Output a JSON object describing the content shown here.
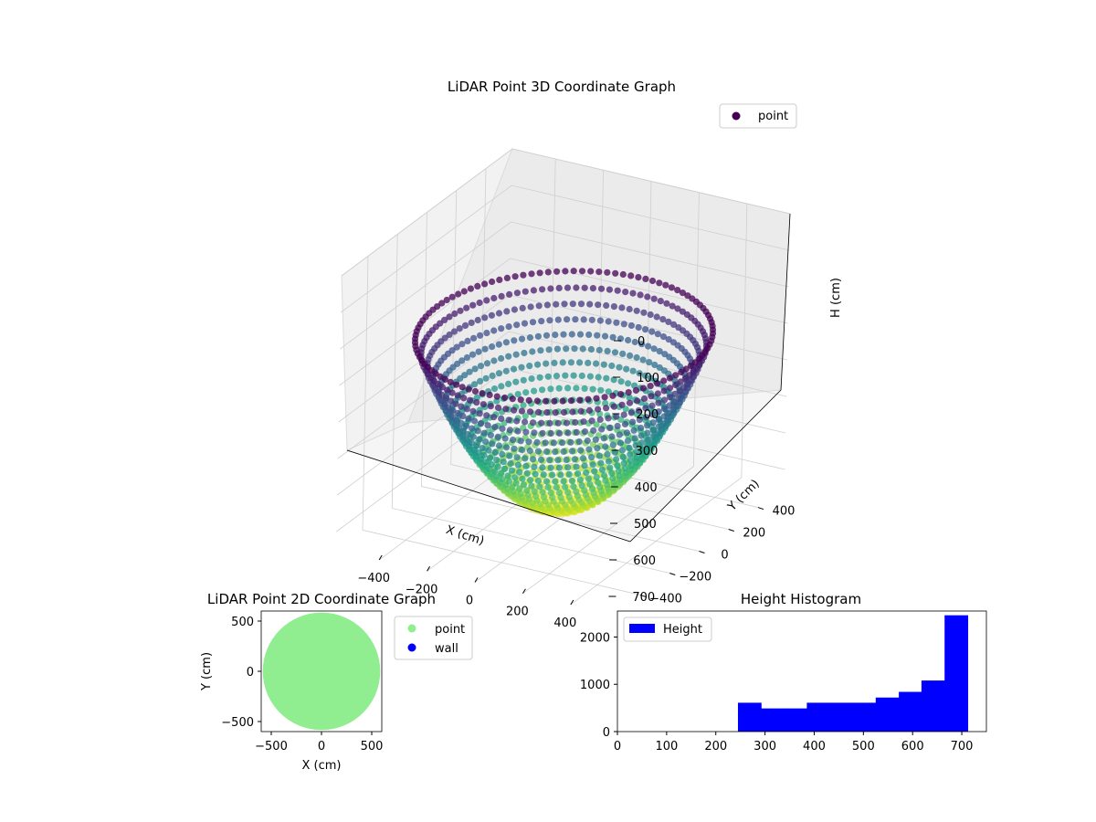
{
  "figure": {
    "background": "#ffffff"
  },
  "chart_data": [
    {
      "type": "scatter",
      "projection": "3d",
      "title": "LiDAR Point 3D Coordinate Graph",
      "xlabel": "X (cm)",
      "ylabel": "Y (cm)",
      "zlabel": "H (cm)",
      "xlim": [
        -580,
        580
      ],
      "ylim": [
        -580,
        580
      ],
      "zlim": [
        750,
        0
      ],
      "z_inverted": true,
      "xticks": [
        -400,
        -200,
        0,
        200,
        400
      ],
      "xtick_labels": [
        "−400",
        "−200",
        "0",
        "200",
        "400"
      ],
      "yticks": [
        -400,
        -200,
        0,
        200,
        400
      ],
      "ytick_labels": [
        "−400",
        "−200",
        "0",
        "200",
        "400"
      ],
      "zticks": [
        0,
        100,
        200,
        300,
        400,
        500,
        600,
        700
      ],
      "ztick_labels": [
        "0",
        "100",
        "200",
        "300",
        "400",
        "500",
        "600",
        "700"
      ],
      "colormap": "viridis",
      "legend": {
        "entries": [
          "point"
        ],
        "placement": "top-right",
        "marker_color": "#440154"
      },
      "surface": {
        "shape": "bowl",
        "rim_radius": 530,
        "rim_height": 250,
        "center_height": 720,
        "rings": 24,
        "points_per_ring": 110
      },
      "grid": true
    },
    {
      "type": "scatter",
      "title": "LiDAR Point 2D Coordinate Graph",
      "xlabel": "X (cm)",
      "ylabel": "Y (cm)",
      "xlim": [
        -600,
        600
      ],
      "ylim": [
        -600,
        600
      ],
      "xticks": [
        -500,
        0,
        500
      ],
      "xtick_labels": [
        "−500",
        "0",
        "500"
      ],
      "yticks": [
        -500,
        0,
        500
      ],
      "ytick_labels": [
        "−500",
        "0",
        "500"
      ],
      "series": [
        {
          "name": "point",
          "color": "#90ee90",
          "region_radius": 530
        },
        {
          "name": "wall",
          "color": "#0000ff",
          "count": 0
        }
      ],
      "legend": {
        "placement": "outside-right"
      },
      "grid": false
    },
    {
      "type": "bar",
      "subtype": "histogram",
      "title": "Height Histogram",
      "xlim": [
        0,
        750
      ],
      "ylim": [
        0,
        2550
      ],
      "xticks": [
        0,
        100,
        200,
        300,
        400,
        500,
        600,
        700
      ],
      "xtick_labels": [
        "0",
        "100",
        "200",
        "300",
        "400",
        "500",
        "600",
        "700"
      ],
      "yticks": [
        0,
        1000,
        2000
      ],
      "ytick_labels": [
        "0",
        "1000",
        "2000"
      ],
      "bin_edges": [
        245,
        292,
        338,
        385,
        432,
        478,
        525,
        572,
        618,
        665,
        712
      ],
      "values": [
        610,
        490,
        490,
        610,
        610,
        610,
        720,
        840,
        1080,
        2460
      ],
      "color": "#0000ff",
      "legend": {
        "entries": [
          "Height"
        ],
        "placement": "top-left"
      },
      "grid": false
    }
  ]
}
